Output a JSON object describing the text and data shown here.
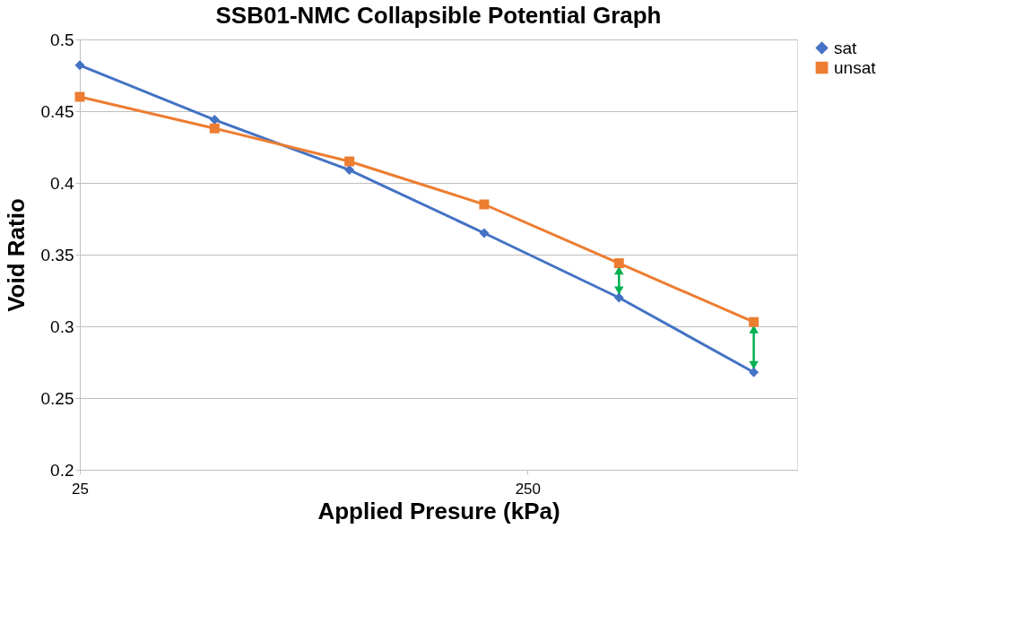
{
  "chart_data": {
    "type": "line",
    "title": "SSB01-NMC Collapsible Potential Graph",
    "xlabel": "Applied Presure (kPa)",
    "ylabel": "Void Ratio",
    "x": [
      25,
      50,
      100,
      200,
      400,
      800
    ],
    "series": [
      {
        "name": "sat",
        "color": "#4472c4",
        "marker": "diamond",
        "values": [
          0.482,
          0.444,
          0.409,
          0.365,
          0.32,
          0.268
        ]
      },
      {
        "name": "unsat",
        "color": "#ed7d31",
        "marker": "square",
        "values": [
          0.46,
          0.438,
          0.415,
          0.385,
          0.344,
          0.303
        ]
      }
    ],
    "log": "x",
    "xlim": [
      25,
      1000
    ],
    "xticks": [
      25,
      250
    ],
    "ylim": [
      0.2,
      0.5
    ],
    "yticks": [
      0.2,
      0.25,
      0.3,
      0.35,
      0.4,
      0.45,
      0.5
    ],
    "grid": "y",
    "legend": "right",
    "line_style": "solid"
  }
}
